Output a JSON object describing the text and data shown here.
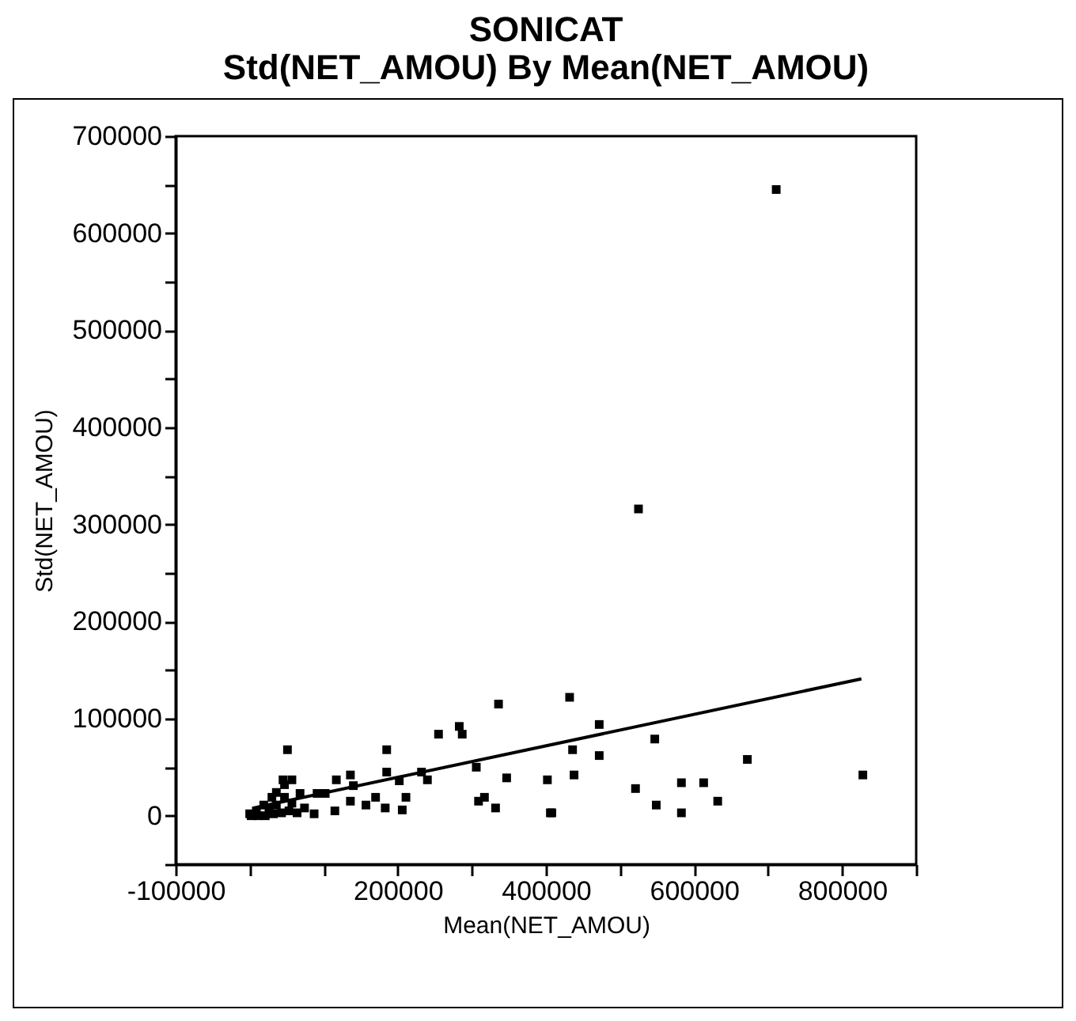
{
  "chart_data": {
    "type": "scatter",
    "title": "SONICAT",
    "subtitle": "Std(NET_AMOU)  By  Mean(NET_AMOU)",
    "xlabel": "Mean(NET_AMOU)",
    "ylabel": "Std(NET_AMOU)",
    "xlim": [
      -100000,
      900000
    ],
    "xticks": [
      {
        "value": -100000,
        "label": "-100000"
      },
      {
        "value": 0,
        "label": null
      },
      {
        "value": 100000,
        "label": null
      },
      200000,
      {
        "value": 300000,
        "label": null
      },
      400000,
      {
        "value": 500000,
        "label": null
      },
      600000,
      {
        "value": 700000,
        "label": null
      },
      800000,
      {
        "value": 900000,
        "label": null
      }
    ],
    "ylim": [
      -50000,
      700000
    ],
    "yticks": [
      {
        "value": -50000,
        "label": null
      },
      0,
      {
        "value": 50000,
        "label": null
      },
      100000,
      {
        "value": 150000,
        "label": null
      },
      200000,
      {
        "value": 250000,
        "label": null
      },
      300000,
      {
        "value": 350000,
        "label": null
      },
      400000,
      {
        "value": 450000,
        "label": null
      },
      500000,
      {
        "value": 550000,
        "label": null
      },
      600000,
      {
        "value": 650000,
        "label": null
      },
      700000
    ],
    "grid": false,
    "marker": "square",
    "series": [
      {
        "color": "#000000",
        "x": [
          711000,
          525000,
          432000,
          472000,
          436000,
          547000,
          472000,
          402000,
          438000,
          521000,
          549000,
          583000,
          613000,
          583000,
          632000,
          672000,
          828000,
          408000,
          51000,
          185000,
          255000,
          283000,
          287000,
          336000,
          306000,
          347000,
          309000,
          317000,
          332000,
          406000,
          232000,
          240000,
          185000,
          136000,
          117000,
          140000,
          202000,
          170000,
          183000,
          206000,
          211000,
          157000,
          136000,
          115000,
          87000,
          91000,
          102000,
          68000,
          45000,
          57000,
          47000,
          36000,
          30000,
          47000,
          57000,
          19000,
          9000,
          0,
          11000,
          21000,
          32000,
          43000,
          53000,
          64000,
          74000,
          36000,
          2000,
          26000
        ],
        "values": [
          645000,
          316000,
          122000,
          94000,
          68000,
          79000,
          62000,
          37000,
          42000,
          28000,
          11000,
          34000,
          34000,
          3000,
          15000,
          58000,
          42000,
          3000,
          68000,
          68000,
          84000,
          92000,
          84000,
          115000,
          50000,
          39000,
          15000,
          19000,
          8000,
          3000,
          45000,
          37000,
          45000,
          42000,
          37000,
          31000,
          36000,
          19000,
          8000,
          6000,
          19000,
          11000,
          15000,
          5000,
          2000,
          23000,
          23000,
          23000,
          37000,
          37000,
          32000,
          24000,
          19000,
          19000,
          13000,
          11000,
          5000,
          2000,
          0,
          0,
          2000,
          3000,
          5000,
          3000,
          8000,
          11000,
          0,
          8000
        ]
      },
      {
        "type": "line",
        "color": "#000000",
        "marker": "none",
        "x": [
          5000,
          826000
        ],
        "values": [
          8000,
          141000
        ]
      }
    ]
  }
}
